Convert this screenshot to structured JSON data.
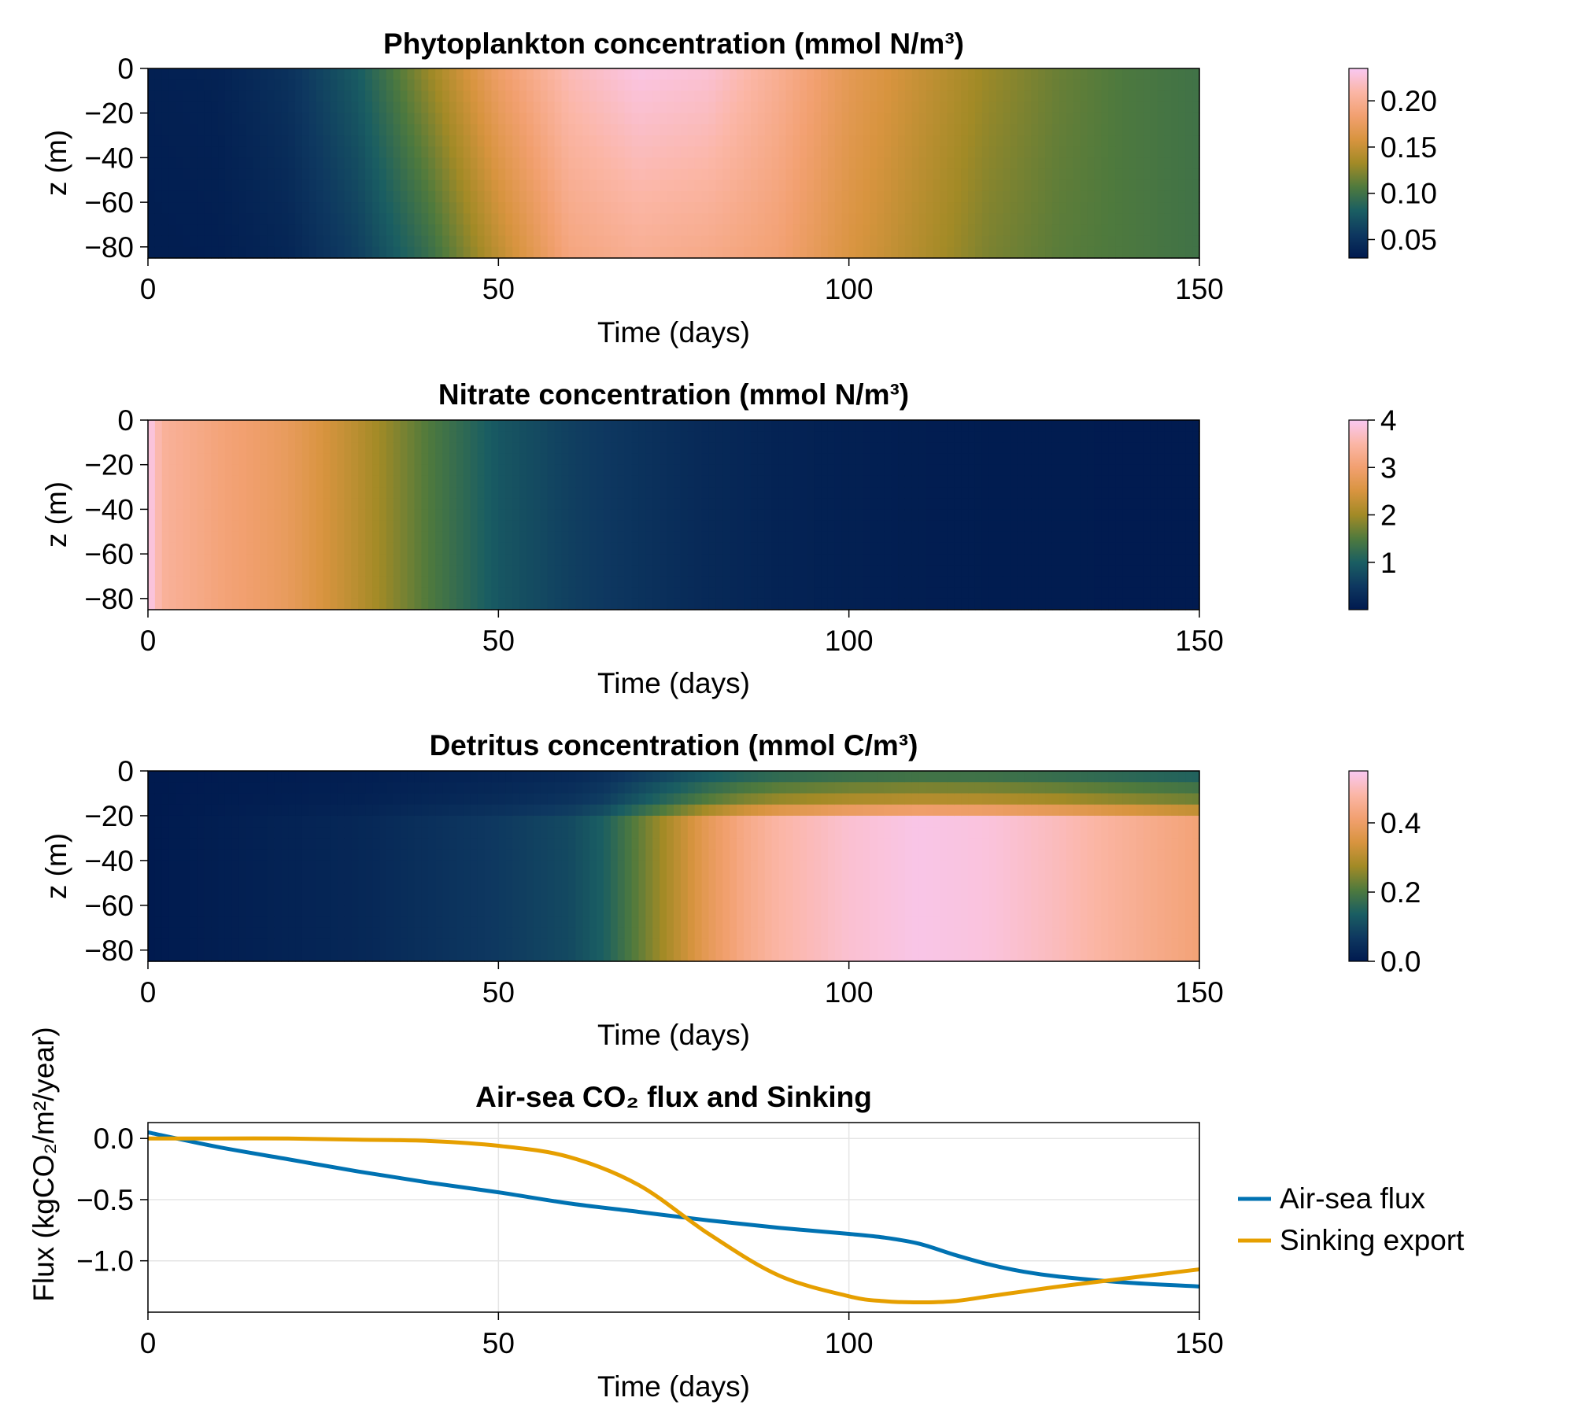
{
  "colors": {
    "colormap": [
      "#001a4f",
      "#0e3860",
      "#1a5e62",
      "#4f7a3d",
      "#a28a26",
      "#d8943f",
      "#f2a070",
      "#fbb6a6",
      "#f9c8f2"
    ],
    "air_sea": "#0072b2",
    "sinking": "#e69f00",
    "grid": "#e5e5e5"
  },
  "chart_data": [
    {
      "type": "heatmap",
      "title": "Phytoplankton concentration (mmol N/m³)",
      "xlabel": "Time (days)",
      "ylabel": "z (m)",
      "xlim": [
        0,
        150
      ],
      "ylim": [
        -85,
        0
      ],
      "xticks": [
        0,
        50,
        100,
        150
      ],
      "xtick_labels": [
        "0",
        "50",
        "100",
        "150"
      ],
      "yticks": [
        0,
        -20,
        -40,
        -60,
        -80
      ],
      "ytick_labels": [
        "0",
        "−20",
        "−40",
        "−60",
        "−80"
      ],
      "colorbar": {
        "range": [
          0.03,
          0.235
        ],
        "ticks": [
          0.05,
          0.1,
          0.15,
          0.2
        ],
        "tick_labels": [
          "0.05",
          "0.10",
          "0.15",
          "0.20"
        ]
      },
      "field": {
        "time": [
          0,
          10,
          20,
          30,
          40,
          50,
          60,
          70,
          80,
          90,
          100,
          110,
          120,
          130,
          140,
          150
        ],
        "surface": [
          0.035,
          0.037,
          0.05,
          0.08,
          0.13,
          0.18,
          0.215,
          0.23,
          0.225,
          0.2,
          0.17,
          0.15,
          0.13,
          0.115,
          0.105,
          0.1
        ],
        "bottom": [
          0.033,
          0.034,
          0.04,
          0.06,
          0.095,
          0.145,
          0.19,
          0.2,
          0.195,
          0.185,
          0.16,
          0.14,
          0.12,
          0.11,
          0.105,
          0.1
        ],
        "bottom_depth": -85
      }
    },
    {
      "type": "heatmap",
      "title": "Nitrate concentration (mmol N/m³)",
      "xlabel": "Time (days)",
      "ylabel": "z (m)",
      "xlim": [
        0,
        150
      ],
      "ylim": [
        -85,
        0
      ],
      "xticks": [
        0,
        50,
        100,
        150
      ],
      "xtick_labels": [
        "0",
        "50",
        "100",
        "150"
      ],
      "yticks": [
        0,
        -20,
        -40,
        -60,
        -80
      ],
      "ytick_labels": [
        "0",
        "−20",
        "−40",
        "−60",
        "−80"
      ],
      "colorbar": {
        "range": [
          0,
          4
        ],
        "ticks": [
          1,
          2,
          3,
          4
        ],
        "tick_labels": [
          "1",
          "2",
          "3",
          "4"
        ]
      },
      "field": {
        "time": [
          0,
          2,
          10,
          20,
          30,
          40,
          50,
          60,
          70,
          80,
          90,
          100,
          110,
          120,
          130,
          140,
          150
        ],
        "values": [
          4.0,
          3.4,
          3.1,
          2.8,
          2.2,
          1.5,
          0.9,
          0.6,
          0.4,
          0.25,
          0.15,
          0.1,
          0.06,
          0.04,
          0.03,
          0.02,
          0.02
        ]
      }
    },
    {
      "type": "heatmap",
      "title": "Detritus concentration (mmol C/m³)",
      "xlabel": "Time (days)",
      "ylabel": "z (m)",
      "xlim": [
        0,
        150
      ],
      "ylim": [
        -85,
        0
      ],
      "xticks": [
        0,
        50,
        100,
        150
      ],
      "xtick_labels": [
        "0",
        "50",
        "100",
        "150"
      ],
      "yticks": [
        0,
        -20,
        -40,
        -60,
        -80
      ],
      "ytick_labels": [
        "0",
        "−20",
        "−40",
        "−60",
        "−80"
      ],
      "colorbar": {
        "range": [
          0,
          0.55
        ],
        "ticks": [
          0.0,
          0.2,
          0.4
        ],
        "tick_labels": [
          "0.0",
          "0.2",
          "0.4"
        ]
      },
      "field": {
        "time": [
          0,
          10,
          20,
          30,
          40,
          50,
          60,
          65,
          70,
          75,
          80,
          85,
          90,
          100,
          110,
          120,
          130,
          140,
          150
        ],
        "deep": [
          0.0,
          0.01,
          0.02,
          0.03,
          0.05,
          0.07,
          0.1,
          0.14,
          0.22,
          0.3,
          0.38,
          0.44,
          0.48,
          0.52,
          0.54,
          0.53,
          0.5,
          0.46,
          0.42
        ],
        "top_layers": [
          {
            "z_top": 0,
            "z_bottom": -4,
            "factor": 0.35
          },
          {
            "z_top": -4,
            "z_bottom": -8,
            "factor": 0.45
          },
          {
            "z_top": -8,
            "z_bottom": -12,
            "factor": 0.65
          },
          {
            "z_top": -12,
            "z_bottom": -16,
            "factor": 0.55
          },
          {
            "z_top": -16,
            "z_bottom": -20,
            "factor": 0.75
          }
        ]
      }
    },
    {
      "type": "line",
      "title": "Air-sea CO₂ flux and Sinking",
      "xlabel": "Time (days)",
      "ylabel": "Flux (kgCO₂/m²/year)",
      "xlim": [
        0,
        150
      ],
      "ylim": [
        -1.42,
        0.13
      ],
      "grid": true,
      "legend": "right",
      "xticks": [
        0,
        50,
        100,
        150
      ],
      "xtick_labels": [
        "0",
        "50",
        "100",
        "150"
      ],
      "yticks": [
        0.0,
        -0.5,
        -1.0
      ],
      "ytick_labels": [
        "0.0",
        "−0.5",
        "−1.0"
      ],
      "x": [
        0,
        10,
        20,
        30,
        40,
        50,
        60,
        70,
        80,
        90,
        100,
        105,
        110,
        115,
        120,
        125,
        130,
        140,
        150
      ],
      "series": [
        {
          "name": "Air-sea flux",
          "values": [
            0.05,
            -0.07,
            -0.17,
            -0.27,
            -0.36,
            -0.44,
            -0.53,
            -0.6,
            -0.67,
            -0.73,
            -0.78,
            -0.81,
            -0.86,
            -0.95,
            -1.03,
            -1.09,
            -1.13,
            -1.18,
            -1.21
          ]
        },
        {
          "name": "Sinking export",
          "values": [
            0.0,
            0.0,
            0.0,
            -0.01,
            -0.02,
            -0.06,
            -0.15,
            -0.38,
            -0.78,
            -1.12,
            -1.29,
            -1.33,
            -1.34,
            -1.33,
            -1.29,
            -1.25,
            -1.21,
            -1.14,
            -1.07
          ]
        }
      ]
    }
  ]
}
